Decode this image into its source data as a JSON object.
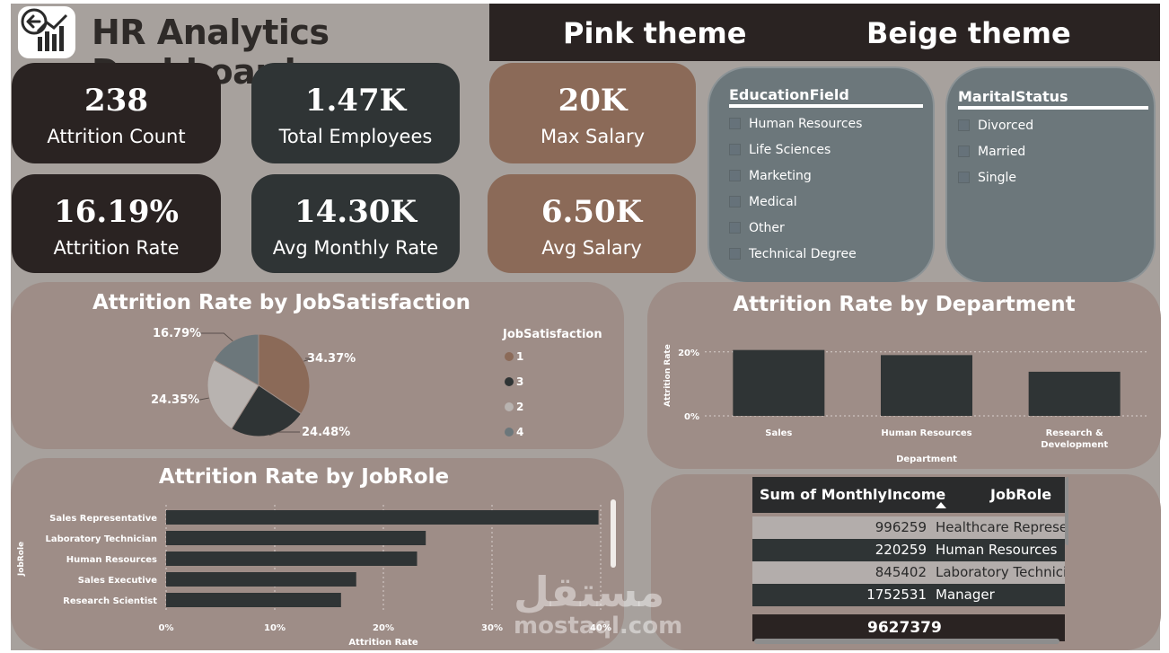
{
  "header": {
    "title": "HR Analytics Dashboard",
    "themes": [
      "Pink theme",
      "Beige theme"
    ]
  },
  "kpis": [
    {
      "value": "238",
      "label": "Attrition Count"
    },
    {
      "value": "1.47K",
      "label": "Total Employees"
    },
    {
      "value": "20K",
      "label": "Max Salary"
    },
    {
      "value": "16.19%",
      "label": "Attrition Rate"
    },
    {
      "value": "14.30K",
      "label": "Avg Monthly Rate"
    },
    {
      "value": "6.50K",
      "label": "Avg Salary"
    }
  ],
  "slicers": {
    "education": {
      "title": "EducationField",
      "items": [
        "Human Resources",
        "Life Sciences",
        "Marketing",
        "Medical",
        "Other",
        "Technical Degree"
      ]
    },
    "marital": {
      "title": "MaritalStatus",
      "items": [
        "Divorced",
        "Married",
        "Single"
      ]
    }
  },
  "colors": {
    "dark": "#2a2322",
    "slate": "#2f3435",
    "brown": "#8b6a58",
    "panel": "#9e8d87",
    "slicer": "#6c777b",
    "background": "#a7a19d",
    "pie_1": "#8b6a58",
    "pie_3": "#2f3435",
    "pie_2": "#b8b3b0",
    "pie_4": "#6c777b"
  },
  "chart_data": [
    {
      "type": "pie",
      "title": "Attrition Rate by JobSatisfaction",
      "legend_title": "JobSatisfaction",
      "legend_position": "right",
      "slices": [
        {
          "name": "1",
          "value": 34.37,
          "label": "34.37%",
          "color": "#8b6a58"
        },
        {
          "name": "3",
          "value": 24.48,
          "label": "24.48%",
          "color": "#2f3435"
        },
        {
          "name": "2",
          "value": 24.35,
          "label": "24.35%",
          "color": "#b8b3b0"
        },
        {
          "name": "4",
          "value": 16.79,
          "label": "16.79%",
          "color": "#6c777b"
        }
      ]
    },
    {
      "type": "bar",
      "title": "Attrition Rate by Department",
      "xlabel": "Department",
      "ylabel": "Attrition Rate",
      "categories": [
        "Sales",
        "Human Resources",
        "Research & Development"
      ],
      "values": [
        20.6,
        19.0,
        13.8
      ],
      "ylim": [
        0,
        25
      ],
      "yticks": [
        "0%",
        "20%"
      ],
      "grid": true
    },
    {
      "type": "bar",
      "orientation": "horizontal",
      "title": "Attrition Rate by JobRole",
      "xlabel": "Attrition Rate",
      "ylabel": "JobRole",
      "categories": [
        "Sales Representative",
        "Laboratory Technician",
        "Human Resources",
        "Sales Executive",
        "Research Scientist"
      ],
      "values": [
        39.8,
        23.9,
        23.1,
        17.5,
        16.1
      ],
      "xlim": [
        0,
        40
      ],
      "xticks": [
        "0%",
        "10%",
        "20%",
        "30%",
        "40%"
      ],
      "grid": true
    },
    {
      "type": "table",
      "columns": [
        "Sum of MonthlyIncome",
        "JobRole"
      ],
      "rows": [
        [
          "996259",
          "Healthcare Representative"
        ],
        [
          "220259",
          "Human Resources"
        ],
        [
          "845402",
          "Laboratory Technician"
        ],
        [
          "1752531",
          "Manager"
        ]
      ],
      "total": "9627379"
    }
  ],
  "watermark": {
    "arabic": "مستقل",
    "latin": "mostaql.com"
  }
}
